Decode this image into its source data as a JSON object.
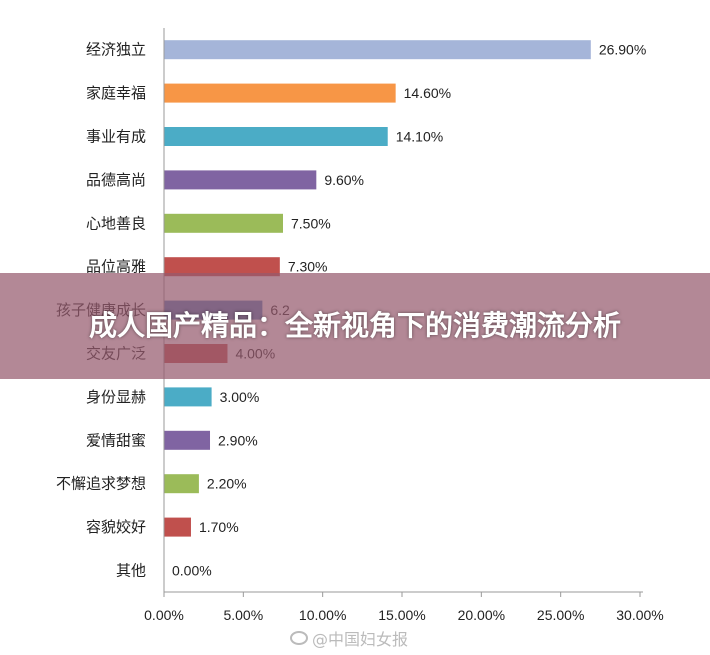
{
  "chart_data": {
    "type": "bar",
    "orientation": "horizontal",
    "categories": [
      "经济独立",
      "家庭幸福",
      "事业有成",
      "品德高尚",
      "心地善良",
      "品位高雅",
      "孩子健康成长",
      "交友广泛",
      "身份显赫",
      "爱情甜蜜",
      "不懈追求梦想",
      "容貌姣好",
      "其他"
    ],
    "values": [
      26.9,
      14.6,
      14.1,
      9.6,
      7.5,
      7.3,
      6.2,
      4.0,
      3.0,
      2.9,
      2.2,
      1.7,
      0.0
    ],
    "value_labels": [
      "26.90%",
      "14.60%",
      "14.10%",
      "9.60%",
      "7.50%",
      "7.30%",
      "6.2",
      "4.00%",
      "3.00%",
      "2.90%",
      "2.20%",
      "1.70%",
      "0.00%"
    ],
    "colors": [
      "#a5b5d9",
      "#f79646",
      "#4bacc6",
      "#8064a2",
      "#9bbb59",
      "#c0504d",
      "#4f81bd",
      "#c0504d",
      "#4bacc6",
      "#8064a2",
      "#9bbb59",
      "#c0504d",
      "#4f81bd"
    ],
    "x_ticks": [
      "0.00%",
      "5.00%",
      "10.00%",
      "15.00%",
      "20.00%",
      "25.00%",
      "30.00%"
    ],
    "xlim": [
      0,
      30
    ],
    "title": "",
    "xlabel": "",
    "ylabel": "",
    "grid": false,
    "legend": "none"
  },
  "overlay": {
    "title": "成人国产精品：全新视角下的消费潮流分析"
  },
  "watermark": {
    "text": "@中国妇女报"
  }
}
